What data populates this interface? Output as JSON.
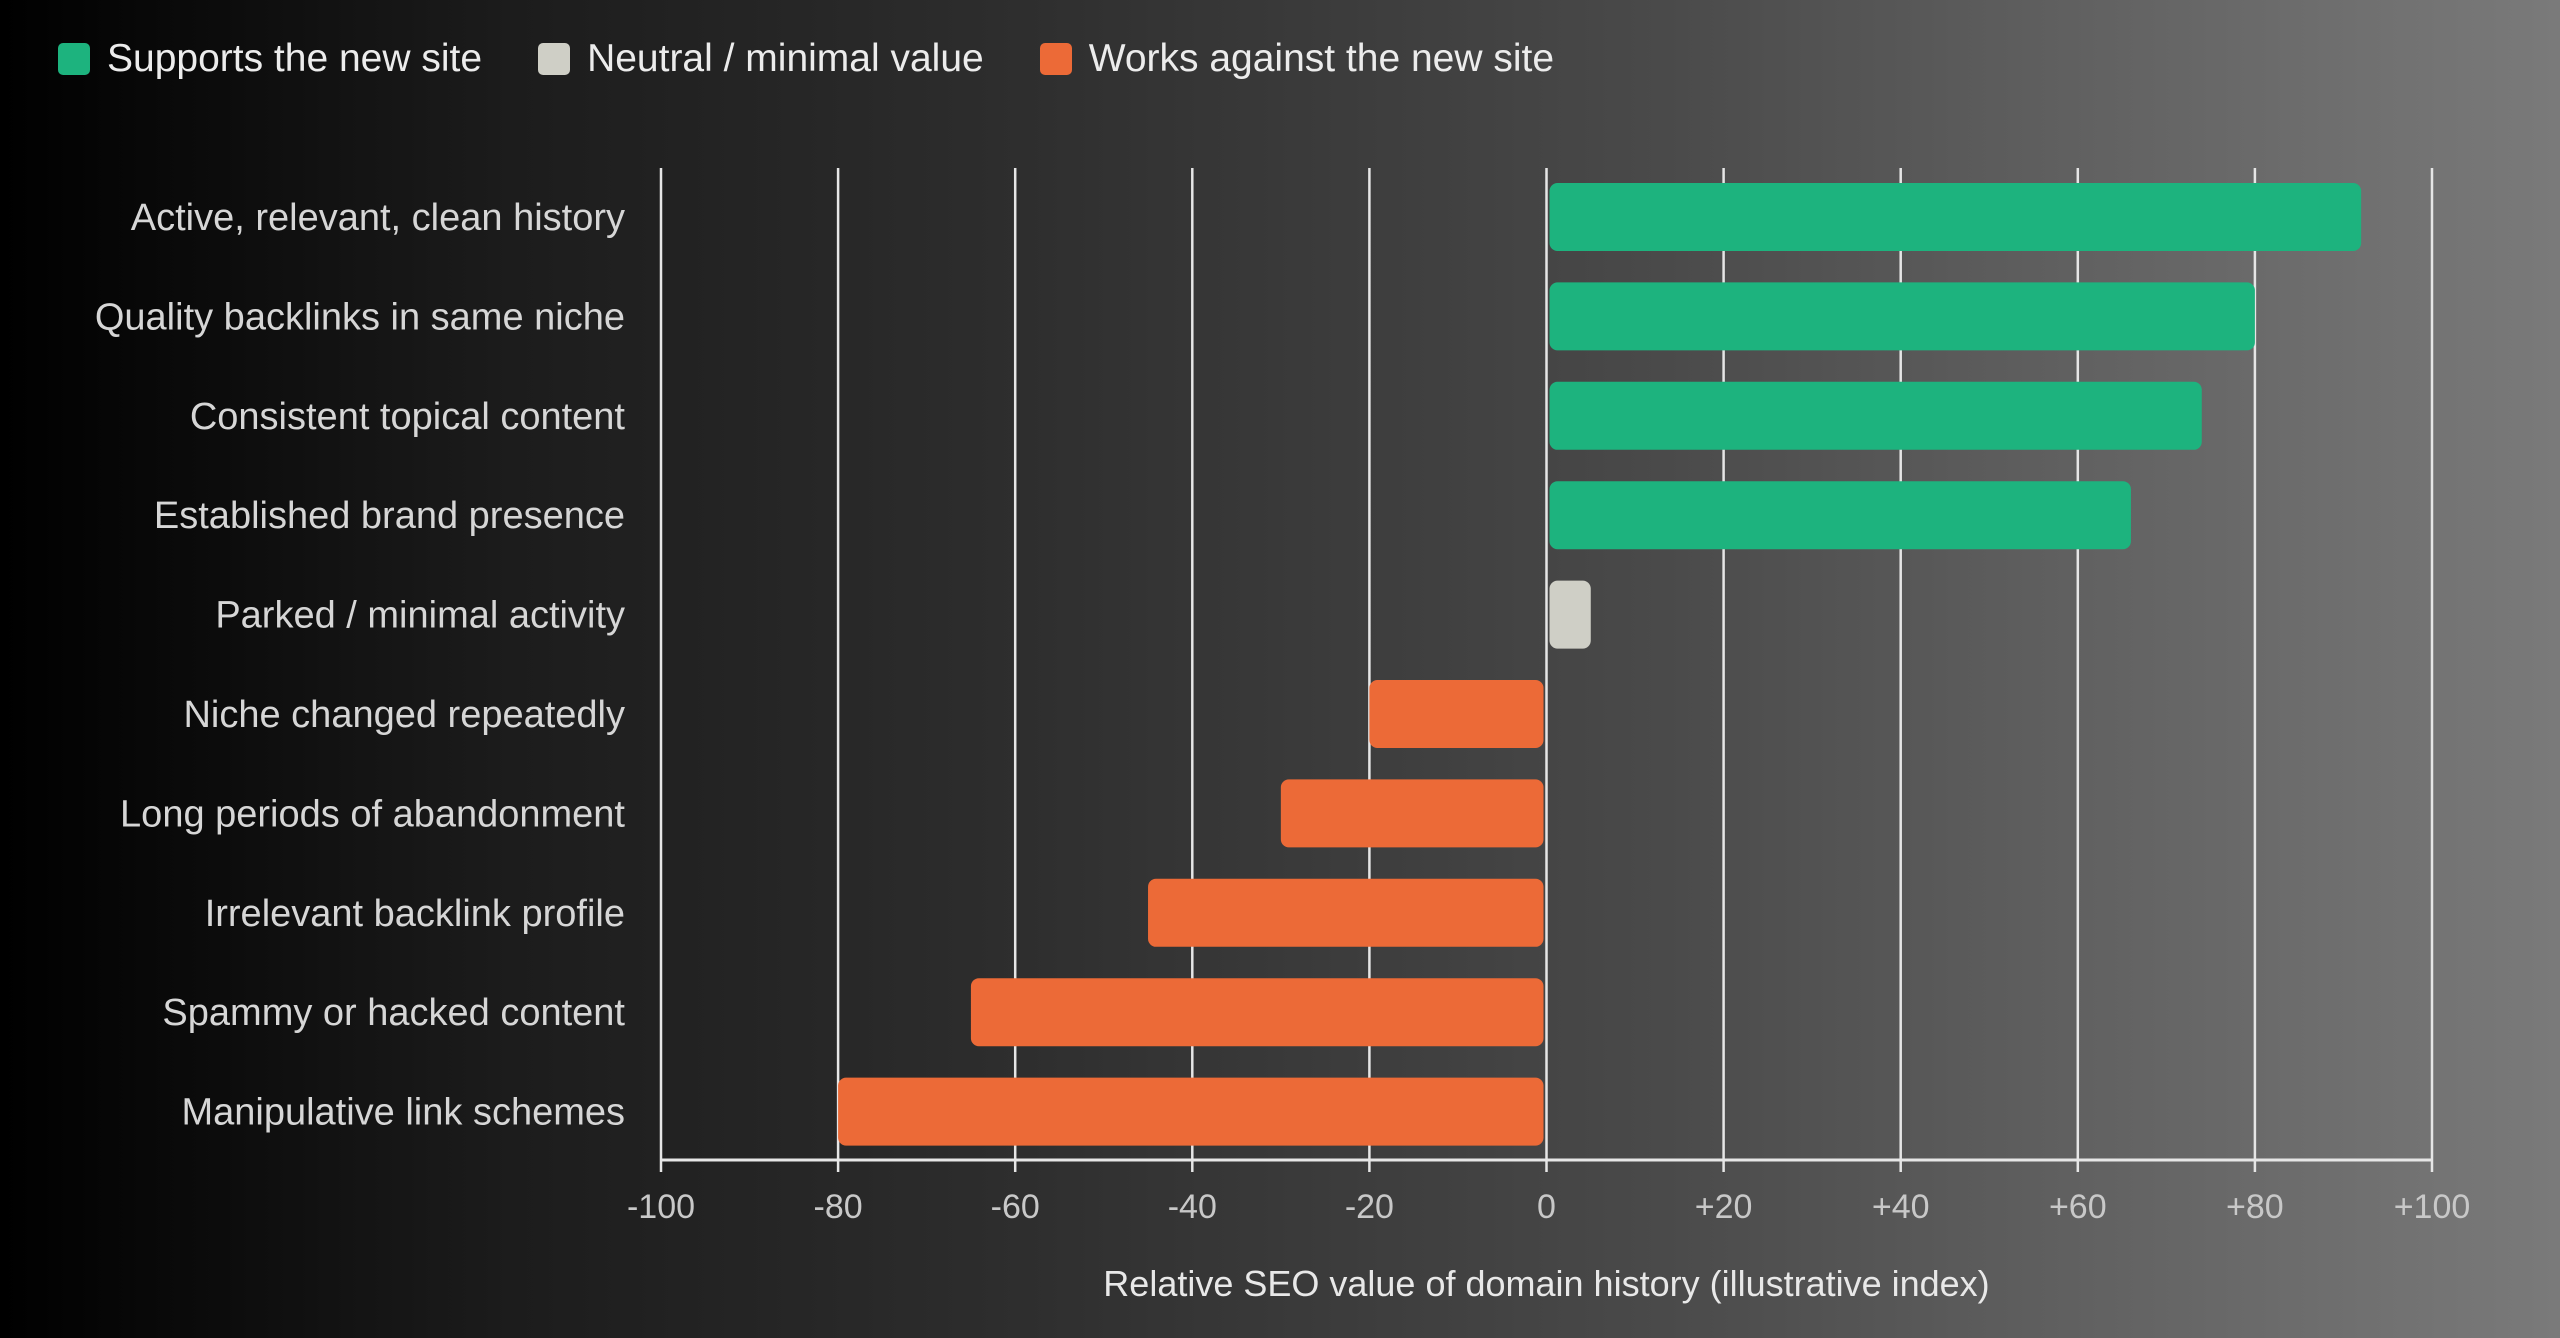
{
  "chart_data": {
    "type": "bar",
    "orientation": "horizontal",
    "categories": [
      "Active, relevant, clean history",
      "Quality backlinks in same niche",
      "Consistent topical content",
      "Established brand presence",
      "Parked / minimal activity",
      "Niche changed repeatedly",
      "Long periods of abandonment",
      "Irrelevant backlink profile",
      "Spammy or hacked content",
      "Manipulative link schemes"
    ],
    "values": [
      92,
      80,
      74,
      66,
      5,
      -20,
      -30,
      -45,
      -65,
      -80
    ],
    "value_groups": [
      "supports",
      "supports",
      "supports",
      "supports",
      "neutral",
      "against",
      "against",
      "against",
      "against",
      "against"
    ],
    "xlabel": "Relative SEO value of domain history (illustrative index)",
    "xlim": [
      -100,
      100
    ],
    "xticks": [
      -100,
      -80,
      -60,
      -40,
      -20,
      0,
      20,
      40,
      60,
      80,
      100
    ],
    "xtick_labels": [
      "-100",
      "-80",
      "-60",
      "-40",
      "-20",
      "0",
      "+20",
      "+40",
      "+60",
      "+80",
      "+100"
    ],
    "grid": true,
    "legend_position": "top-left",
    "legend": [
      {
        "key": "supports",
        "label": "Supports the new site",
        "color": "#1db37e"
      },
      {
        "key": "neutral",
        "label": "Neutral / minimal value",
        "color": "#cfcfc6"
      },
      {
        "key": "against",
        "label": "Works against the new site",
        "color": "#ec6a37"
      }
    ]
  }
}
